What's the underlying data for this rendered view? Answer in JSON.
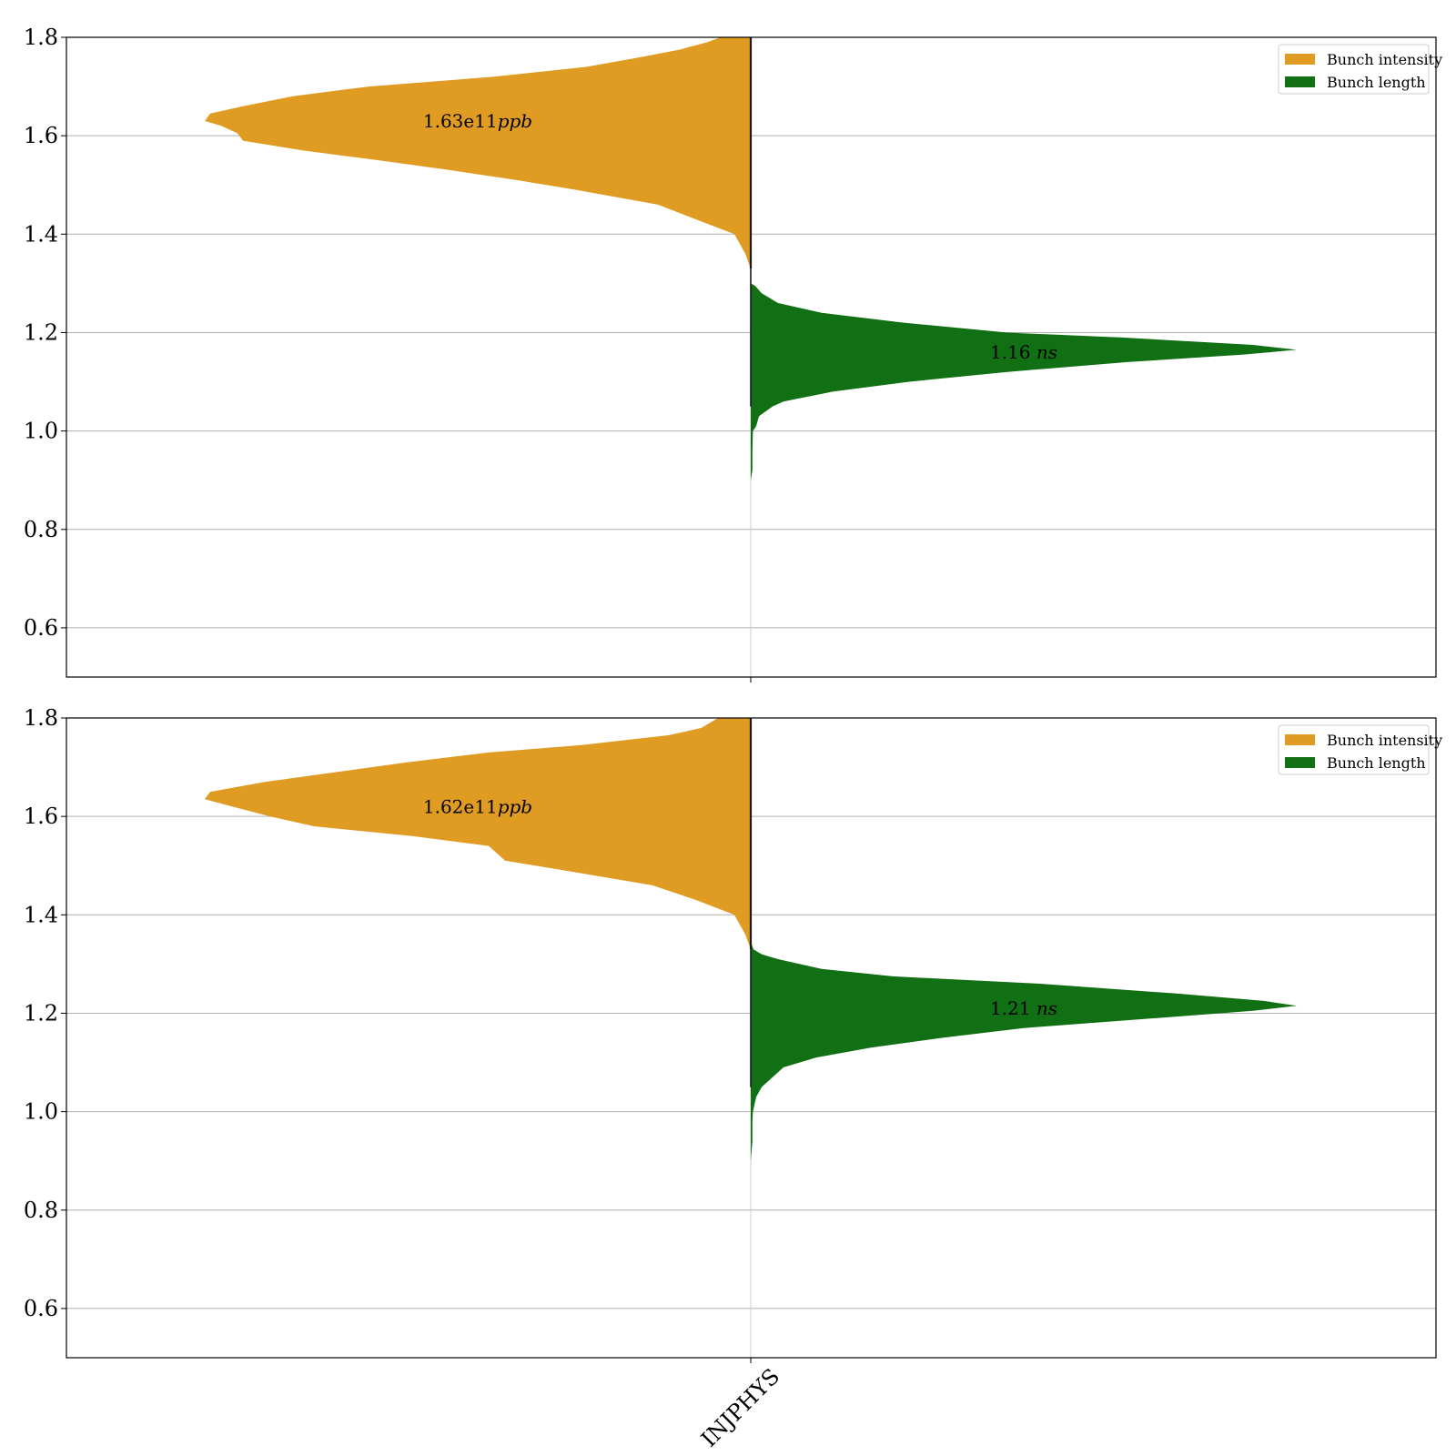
{
  "chart_data": [
    {
      "type": "violin",
      "ylim": [
        0.5,
        1.8
      ],
      "yticks": [
        "0.6",
        "0.8",
        "1.0",
        "1.2",
        "1.4",
        "1.6",
        "1.8"
      ],
      "grid": "horizontal",
      "legend_position": "top-right",
      "category": "INJPHYS",
      "series": [
        {
          "name": "Bunch intensity",
          "side": "left",
          "color": "#E09C22",
          "annotation_number": "1.63e11",
          "annotation_unit": "ppb",
          "y_center": 1.63,
          "profile": [
            [
              1.33,
              0.0
            ],
            [
              1.36,
              0.01
            ],
            [
              1.4,
              0.03
            ],
            [
              1.43,
              0.1
            ],
            [
              1.46,
              0.17
            ],
            [
              1.49,
              0.32
            ],
            [
              1.51,
              0.43
            ],
            [
              1.53,
              0.55
            ],
            [
              1.55,
              0.68
            ],
            [
              1.57,
              0.82
            ],
            [
              1.59,
              0.93
            ],
            [
              1.605,
              0.94
            ],
            [
              1.62,
              0.97
            ],
            [
              1.63,
              1.0
            ],
            [
              1.645,
              0.99
            ],
            [
              1.66,
              0.93
            ],
            [
              1.68,
              0.84
            ],
            [
              1.7,
              0.7
            ],
            [
              1.72,
              0.47
            ],
            [
              1.74,
              0.3
            ],
            [
              1.76,
              0.2
            ],
            [
              1.775,
              0.13
            ],
            [
              1.79,
              0.08
            ],
            [
              1.8,
              0.055
            ]
          ]
        },
        {
          "name": "Bunch length",
          "side": "right",
          "color": "#117013",
          "annotation_number": "1.16",
          "annotation_unit": "ns",
          "y_center": 1.16,
          "profile": [
            [
              0.9,
              0.0
            ],
            [
              0.92,
              0.003
            ],
            [
              0.96,
              0.003
            ],
            [
              1.0,
              0.004
            ],
            [
              1.01,
              0.01
            ],
            [
              1.03,
              0.015
            ],
            [
              1.05,
              0.04
            ],
            [
              1.06,
              0.06
            ],
            [
              1.08,
              0.15
            ],
            [
              1.1,
              0.29
            ],
            [
              1.12,
              0.47
            ],
            [
              1.14,
              0.69
            ],
            [
              1.155,
              0.9
            ],
            [
              1.165,
              1.0
            ],
            [
              1.175,
              0.92
            ],
            [
              1.19,
              0.68
            ],
            [
              1.2,
              0.47
            ],
            [
              1.22,
              0.28
            ],
            [
              1.24,
              0.13
            ],
            [
              1.26,
              0.05
            ],
            [
              1.28,
              0.02
            ],
            [
              1.295,
              0.008
            ],
            [
              1.3,
              0.0
            ]
          ]
        }
      ]
    },
    {
      "type": "violin",
      "ylim": [
        0.5,
        1.8
      ],
      "yticks": [
        "0.6",
        "0.8",
        "1.0",
        "1.2",
        "1.4",
        "1.6",
        "1.8"
      ],
      "grid": "horizontal",
      "legend_position": "top-right",
      "category": "INJPHYS",
      "series": [
        {
          "name": "Bunch intensity",
          "side": "left",
          "color": "#E09C22",
          "annotation_number": "1.62e11",
          "annotation_unit": "ppb",
          "y_center": 1.62,
          "profile": [
            [
              1.33,
              0.0
            ],
            [
              1.36,
              0.01
            ],
            [
              1.4,
              0.03
            ],
            [
              1.43,
              0.1
            ],
            [
              1.46,
              0.18
            ],
            [
              1.49,
              0.34
            ],
            [
              1.51,
              0.45
            ],
            [
              1.54,
              0.48
            ],
            [
              1.56,
              0.62
            ],
            [
              1.58,
              0.8
            ],
            [
              1.6,
              0.88
            ],
            [
              1.62,
              0.95
            ],
            [
              1.635,
              1.0
            ],
            [
              1.65,
              0.99
            ],
            [
              1.67,
              0.89
            ],
            [
              1.69,
              0.76
            ],
            [
              1.71,
              0.63
            ],
            [
              1.73,
              0.48
            ],
            [
              1.745,
              0.31
            ],
            [
              1.765,
              0.15
            ],
            [
              1.78,
              0.09
            ],
            [
              1.8,
              0.06
            ]
          ]
        },
        {
          "name": "Bunch length",
          "side": "right",
          "color": "#117013",
          "annotation_number": "1.21",
          "annotation_unit": "ns",
          "y_center": 1.21,
          "profile": [
            [
              0.9,
              0.0
            ],
            [
              0.94,
              0.003
            ],
            [
              0.98,
              0.003
            ],
            [
              1.0,
              0.004
            ],
            [
              1.03,
              0.01
            ],
            [
              1.05,
              0.02
            ],
            [
              1.07,
              0.04
            ],
            [
              1.09,
              0.06
            ],
            [
              1.11,
              0.12
            ],
            [
              1.13,
              0.22
            ],
            [
              1.15,
              0.35
            ],
            [
              1.17,
              0.5
            ],
            [
              1.19,
              0.74
            ],
            [
              1.205,
              0.92
            ],
            [
              1.215,
              1.0
            ],
            [
              1.225,
              0.94
            ],
            [
              1.24,
              0.78
            ],
            [
              1.26,
              0.53
            ],
            [
              1.275,
              0.26
            ],
            [
              1.29,
              0.13
            ],
            [
              1.31,
              0.05
            ],
            [
              1.32,
              0.02
            ],
            [
              1.33,
              0.005
            ],
            [
              1.345,
              0.0
            ]
          ]
        }
      ]
    }
  ]
}
